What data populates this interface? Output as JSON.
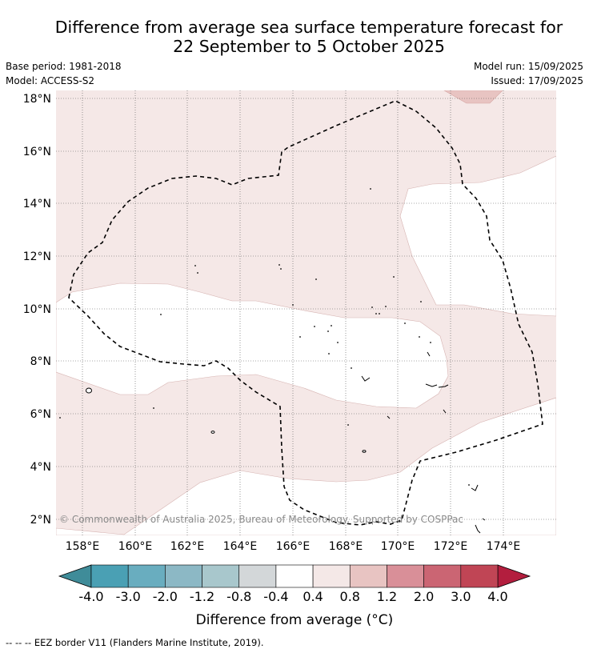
{
  "title_line1": "Difference from average sea surface temperature forecast for",
  "title_line2": "22 September to 5 October 2025",
  "base_period": "Base period: 1981-2018",
  "model": "Model: ACCESS-S2",
  "model_run": "Model run: 15/09/2025",
  "issued": "Issued: 17/09/2025",
  "copyright": "© Commonwealth of Australia 2025, Bureau of Meteorology. Supported by COSPPac",
  "map": {
    "lat_labels": [
      "18°N",
      "16°N",
      "14°N",
      "12°N",
      "10°N",
      "8°N",
      "6°N",
      "4°N",
      "2°N"
    ],
    "lon_labels": [
      "158°E",
      "160°E",
      "162°E",
      "164°E",
      "166°E",
      "168°E",
      "170°E",
      "172°E",
      "174°E"
    ]
  },
  "colorbar": {
    "tick_labels": [
      "-4.0",
      "-3.0",
      "-2.0",
      "-1.2",
      "-0.8",
      "-0.4",
      "0.4",
      "0.8",
      "1.2",
      "2.0",
      "3.0",
      "4.0"
    ],
    "colors": [
      "#3f8c99",
      "#4aa0b4",
      "#69adbf",
      "#8cb8c5",
      "#a8c7cc",
      "#d3d7d9",
      "#ffffff",
      "#f4e8e7",
      "#e8c4c2",
      "#d98f98",
      "#cb6573",
      "#c04555",
      "#b31e3e"
    ],
    "label": "Difference from average (°C)"
  },
  "footer": "--  --  -- EEZ border V11 (Flanders Marine Institute, 2019)."
}
